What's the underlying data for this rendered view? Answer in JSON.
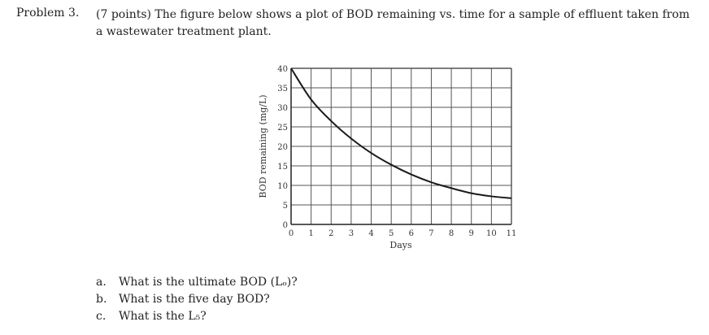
{
  "problem": {
    "label": "Problem 3.",
    "text": "(7 points) The figure below shows a plot of BOD remaining vs. time for a sample of effluent taken from a wastewater treatment plant."
  },
  "chart_data": {
    "type": "line",
    "title": "",
    "xlabel": "Days",
    "ylabel": "BOD remaining (mg/L)",
    "x": [
      0,
      1,
      2,
      3,
      4,
      5,
      6,
      7,
      8,
      9,
      10,
      11
    ],
    "series": [
      {
        "name": "BOD remaining",
        "values": [
          40,
          32,
          26.5,
          22,
          18.3,
          15.3,
          12.8,
          10.8,
          9.3,
          8.0,
          7.2,
          6.7
        ]
      }
    ],
    "xticks": [
      "0",
      "1",
      "2",
      "3",
      "4",
      "5",
      "6",
      "7",
      "8",
      "9",
      "10",
      "11"
    ],
    "yticks": [
      "0",
      "5",
      "10",
      "15",
      "20",
      "25",
      "30",
      "35",
      "40"
    ],
    "xlim": [
      0,
      11
    ],
    "ylim": [
      0,
      40
    ],
    "grid": true,
    "legend": "none"
  },
  "questions": [
    {
      "letter": "a.",
      "text": "What is the ultimate BOD (Lₒ)?"
    },
    {
      "letter": "b.",
      "text": "What is the five day BOD?"
    },
    {
      "letter": "c.",
      "text": "What is the L₅?"
    }
  ]
}
